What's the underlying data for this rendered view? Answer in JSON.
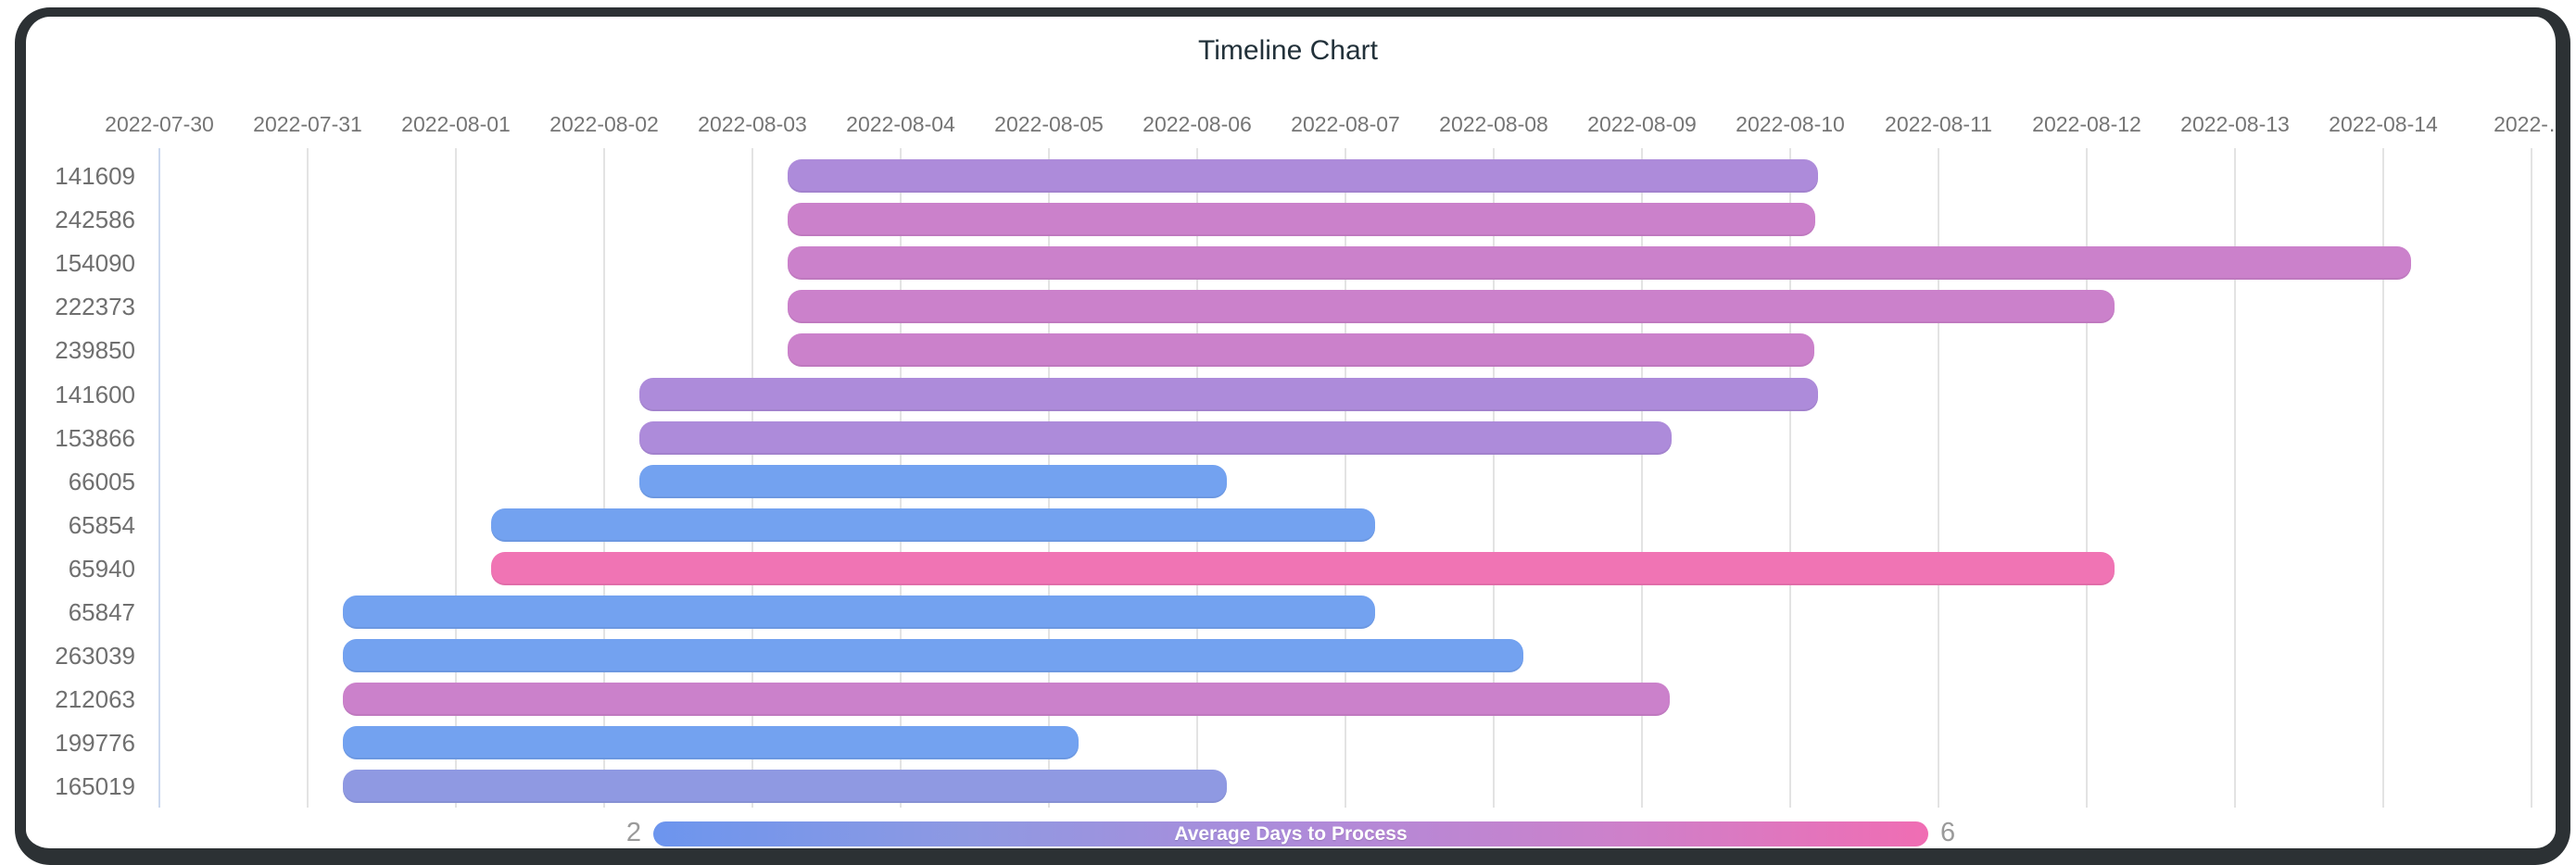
{
  "title": "Timeline Chart",
  "chart_data": {
    "type": "timeline",
    "title": "Timeline Chart",
    "x_axis": {
      "unit": "day",
      "start": "2022-07-30",
      "tick_labels": [
        "2022-07-30",
        "2022-07-31",
        "2022-08-01",
        "2022-08-02",
        "2022-08-03",
        "2022-08-04",
        "2022-08-05",
        "2022-08-06",
        "2022-08-07",
        "2022-08-08",
        "2022-08-09",
        "2022-08-10",
        "2022-08-11",
        "2022-08-12",
        "2022-08-13",
        "2022-08-14",
        "2022-…"
      ]
    },
    "rows": [
      {
        "id": "141609",
        "start": "2022-08-03",
        "end": "2022-08-10",
        "duration_days": 7,
        "avg_days_to_process": 4,
        "color": "#ad8bda",
        "start_d": 4.24,
        "end_d": 11.19
      },
      {
        "id": "242586",
        "start": "2022-08-03",
        "end": "2022-08-10",
        "duration_days": 7,
        "avg_days_to_process": 5,
        "color": "#cb81cb",
        "start_d": 4.24,
        "end_d": 11.17
      },
      {
        "id": "154090",
        "start": "2022-08-03",
        "end": "2022-08-14",
        "duration_days": 11,
        "avg_days_to_process": 5,
        "color": "#cb81cb",
        "start_d": 4.24,
        "end_d": 15.19
      },
      {
        "id": "222373",
        "start": "2022-08-03",
        "end": "2022-08-12",
        "duration_days": 9,
        "avg_days_to_process": 5,
        "color": "#cb81cb",
        "start_d": 4.24,
        "end_d": 13.19
      },
      {
        "id": "239850",
        "start": "2022-08-03",
        "end": "2022-08-10",
        "duration_days": 7,
        "avg_days_to_process": 5,
        "color": "#cb81cb",
        "start_d": 4.24,
        "end_d": 11.16
      },
      {
        "id": "141600",
        "start": "2022-08-02",
        "end": "2022-08-10",
        "duration_days": 8,
        "avg_days_to_process": 4,
        "color": "#ad8bda",
        "start_d": 3.24,
        "end_d": 11.19
      },
      {
        "id": "153866",
        "start": "2022-08-02",
        "end": "2022-08-09",
        "duration_days": 7,
        "avg_days_to_process": 4,
        "color": "#ad8bda",
        "start_d": 3.24,
        "end_d": 10.2
      },
      {
        "id": "66005",
        "start": "2022-08-02",
        "end": "2022-08-06",
        "duration_days": 4,
        "avg_days_to_process": 2,
        "color": "#73a2f0",
        "start_d": 3.24,
        "end_d": 7.2
      },
      {
        "id": "65854",
        "start": "2022-08-01",
        "end": "2022-08-07",
        "duration_days": 6,
        "avg_days_to_process": 2,
        "color": "#73a2f0",
        "start_d": 2.24,
        "end_d": 8.2
      },
      {
        "id": "65940",
        "start": "2022-08-01",
        "end": "2022-08-12",
        "duration_days": 11,
        "avg_days_to_process": 6,
        "color": "#f074b4",
        "start_d": 2.24,
        "end_d": 13.19
      },
      {
        "id": "65847",
        "start": "2022-07-31",
        "end": "2022-08-07",
        "duration_days": 7,
        "avg_days_to_process": 2,
        "color": "#73a2f0",
        "start_d": 1.24,
        "end_d": 8.2
      },
      {
        "id": "263039",
        "start": "2022-07-31",
        "end": "2022-08-08",
        "duration_days": 8,
        "avg_days_to_process": 2,
        "color": "#73a2f0",
        "start_d": 1.24,
        "end_d": 9.2
      },
      {
        "id": "212063",
        "start": "2022-07-31",
        "end": "2022-08-09",
        "duration_days": 9,
        "avg_days_to_process": 5,
        "color": "#cb81cb",
        "start_d": 1.24,
        "end_d": 10.19
      },
      {
        "id": "199776",
        "start": "2022-07-31",
        "end": "2022-08-05",
        "duration_days": 5,
        "avg_days_to_process": 2,
        "color": "#73a2f0",
        "start_d": 1.24,
        "end_d": 6.2
      },
      {
        "id": "165019",
        "start": "2022-07-31",
        "end": "2022-08-06",
        "duration_days": 6,
        "avg_days_to_process": 3,
        "color": "#8f99e2",
        "start_d": 1.24,
        "end_d": 7.2
      }
    ],
    "legend": {
      "label": "Average Days to Process",
      "min_label": "2",
      "max_label": "6",
      "gradient_colors": [
        "#6c95ee",
        "#8f99e2",
        "#ad8bda",
        "#cc81cb",
        "#f06db3"
      ]
    },
    "colors": {
      "gridline": "#e3e3e3",
      "axis_divider": "#ccd9ee",
      "axis_label": "#757575",
      "row_label": "#6f6f6f",
      "title": "#22313a",
      "frame": "#2c3134",
      "legend_minmax": "#9a9a9a"
    }
  }
}
